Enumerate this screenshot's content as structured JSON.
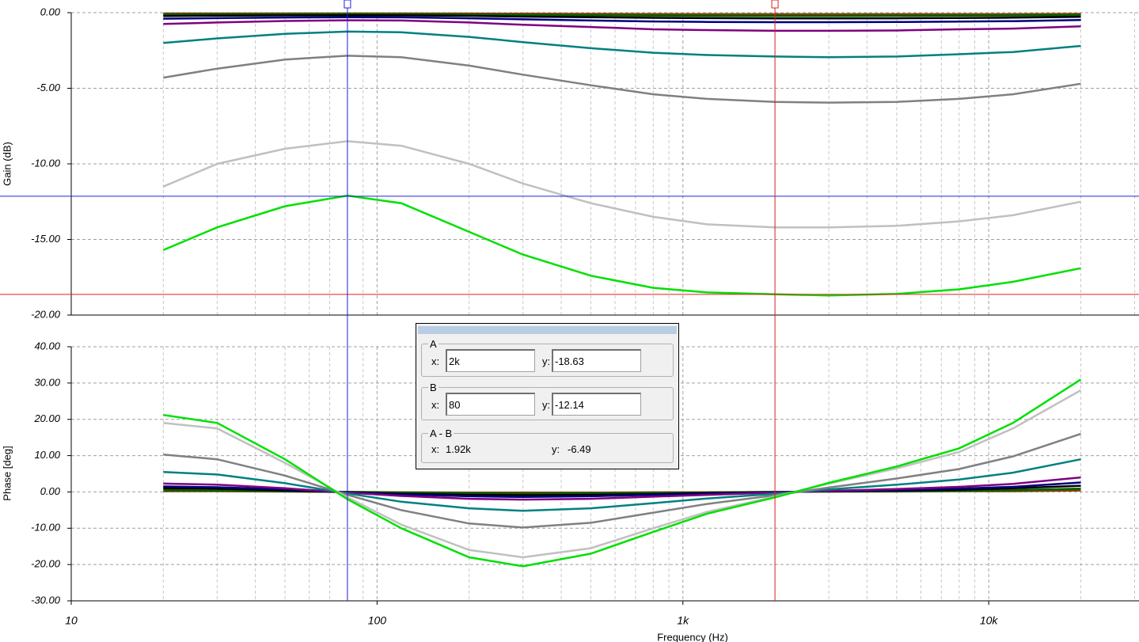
{
  "chart_data": {
    "type": "line",
    "xlabel": "Frequency (Hz)",
    "log_x": true,
    "grid": true,
    "x": [
      20,
      30,
      50,
      80,
      120,
      200,
      300,
      500,
      800,
      1200,
      2000,
      3000,
      5000,
      8000,
      12000,
      20000
    ],
    "xlim": [
      10,
      31000
    ],
    "xticks": [
      10,
      100,
      {
        "value": 1000,
        "label": "1k"
      },
      {
        "value": 10000,
        "label": "10k"
      }
    ],
    "xminor": [
      20,
      30,
      40,
      50,
      60,
      70,
      80,
      90,
      200,
      300,
      400,
      500,
      600,
      700,
      800,
      900,
      2000,
      3000,
      4000,
      5000,
      6000,
      7000,
      8000,
      9000,
      20000,
      30000
    ],
    "x_prefix": "x:",
    "y_prefix": "y:",
    "cursors": [
      {
        "name": "A",
        "x": 2000,
        "x_label": "2k",
        "y": -18.63,
        "color": "#e02020"
      },
      {
        "name": "B",
        "x": 80,
        "x_label": "80",
        "y": -12.14,
        "color": "#2020e0"
      },
      {
        "name": "A - B",
        "x": 1920,
        "x_label": "1.92k",
        "y": -6.49
      }
    ],
    "panels": [
      {
        "ylabel": "Gain (dB)",
        "ylim": [
          -20,
          0
        ],
        "yticks": [
          {
            "value": 0,
            "label": "0.00"
          },
          {
            "value": -5,
            "label": "-5.00"
          },
          {
            "value": -10,
            "label": "-10.00"
          },
          {
            "value": -15,
            "label": "-15.00"
          },
          {
            "value": -20,
            "label": "-20.00"
          }
        ],
        "series": [
          {
            "color": "#804000",
            "values": [
              -0.05,
              -0.05,
              -0.05,
              -0.05,
              -0.05,
              -0.06,
              -0.07,
              -0.08,
              -0.09,
              -0.1,
              -0.1,
              -0.1,
              -0.1,
              -0.1,
              -0.1,
              -0.08
            ]
          },
          {
            "color": "#006000",
            "values": [
              -0.12,
              -0.12,
              -0.11,
              -0.1,
              -0.11,
              -0.13,
              -0.16,
              -0.18,
              -0.2,
              -0.21,
              -0.22,
              -0.22,
              -0.21,
              -0.2,
              -0.19,
              -0.16
            ]
          },
          {
            "color": "#000000",
            "values": [
              -0.22,
              -0.2,
              -0.18,
              -0.17,
              -0.18,
              -0.21,
              -0.26,
              -0.3,
              -0.34,
              -0.36,
              -0.38,
              -0.38,
              -0.37,
              -0.35,
              -0.33,
              -0.28
            ]
          },
          {
            "color": "#000080",
            "values": [
              -0.4,
              -0.36,
              -0.32,
              -0.3,
              -0.31,
              -0.37,
              -0.44,
              -0.52,
              -0.58,
              -0.61,
              -0.63,
              -0.63,
              -0.62,
              -0.59,
              -0.56,
              -0.48
            ]
          },
          {
            "color": "#800080",
            "values": [
              -0.75,
              -0.65,
              -0.55,
              -0.5,
              -0.52,
              -0.65,
              -0.8,
              -0.95,
              -1.1,
              -1.15,
              -1.2,
              -1.2,
              -1.18,
              -1.1,
              -1.05,
              -0.9
            ]
          },
          {
            "color": "#008080",
            "values": [
              -2.0,
              -1.7,
              -1.4,
              -1.25,
              -1.3,
              -1.6,
              -1.95,
              -2.35,
              -2.65,
              -2.8,
              -2.9,
              -2.95,
              -2.9,
              -2.75,
              -2.6,
              -2.2
            ]
          },
          {
            "color": "#808080",
            "values": [
              -4.3,
              -3.7,
              -3.1,
              -2.85,
              -2.95,
              -3.5,
              -4.1,
              -4.8,
              -5.4,
              -5.7,
              -5.9,
              -5.95,
              -5.9,
              -5.7,
              -5.4,
              -4.7
            ]
          },
          {
            "color": "#c0c0c0",
            "values": [
              -11.5,
              -10.0,
              -9.0,
              -8.5,
              -8.8,
              -10.0,
              -11.3,
              -12.6,
              -13.5,
              -14.0,
              -14.2,
              -14.2,
              -14.1,
              -13.8,
              -13.4,
              -12.5
            ]
          },
          {
            "color": "#00e000",
            "values": [
              -15.7,
              -14.2,
              -12.8,
              -12.1,
              -12.6,
              -14.5,
              -16.0,
              -17.4,
              -18.2,
              -18.5,
              -18.63,
              -18.7,
              -18.6,
              -18.3,
              -17.8,
              -16.9
            ]
          }
        ]
      },
      {
        "ylabel": "Phase [deg]",
        "ylim": [
          -30,
          40
        ],
        "yticks": [
          {
            "value": 40,
            "label": "40.00"
          },
          {
            "value": 30,
            "label": "30.00"
          },
          {
            "value": 20,
            "label": "20.00"
          },
          {
            "value": 10,
            "label": "10.00"
          },
          {
            "value": 0,
            "label": "0.00"
          },
          {
            "value": -10,
            "label": "-10.00"
          },
          {
            "value": -20,
            "label": "-20.00"
          },
          {
            "value": -30,
            "label": "-30.00"
          }
        ],
        "series": [
          {
            "color": "#804000",
            "values": [
              0.2,
              0.2,
              0.1,
              0.0,
              -0.1,
              -0.2,
              -0.2,
              -0.2,
              -0.1,
              -0.1,
              0.0,
              0.1,
              0.1,
              0.2,
              0.2,
              0.4
            ]
          },
          {
            "color": "#006000",
            "values": [
              0.5,
              0.4,
              0.2,
              0.0,
              -0.2,
              -0.4,
              -0.5,
              -0.4,
              -0.3,
              -0.2,
              0.0,
              0.1,
              0.2,
              0.3,
              0.5,
              0.9
            ]
          },
          {
            "color": "#000000",
            "values": [
              1.0,
              0.9,
              0.4,
              -0.1,
              -0.5,
              -0.8,
              -0.9,
              -0.8,
              -0.6,
              -0.3,
              -0.1,
              0.2,
              0.4,
              0.6,
              1.0,
              1.7
            ]
          },
          {
            "color": "#000080",
            "values": [
              1.5,
              1.3,
              0.7,
              -0.1,
              -0.7,
              -1.2,
              -1.4,
              -1.2,
              -0.8,
              -0.5,
              -0.1,
              0.2,
              0.5,
              0.9,
              1.4,
              2.6
            ]
          },
          {
            "color": "#800080",
            "values": [
              2.3,
              2.0,
              1.0,
              -0.2,
              -1.1,
              -1.9,
              -2.1,
              -1.9,
              -1.3,
              -0.8,
              -0.2,
              0.3,
              0.8,
              1.4,
              2.2,
              4.0
            ]
          },
          {
            "color": "#008080",
            "values": [
              5.5,
              4.8,
              2.4,
              -0.4,
              -2.7,
              -4.5,
              -5.2,
              -4.5,
              -3.1,
              -1.8,
              -0.5,
              0.7,
              2.0,
              3.4,
              5.3,
              9.0
            ]
          },
          {
            "color": "#808080",
            "values": [
              10.3,
              9.0,
              4.5,
              -0.8,
              -5.0,
              -8.7,
              -9.8,
              -8.5,
              -5.7,
              -3.3,
              -0.9,
              1.2,
              3.7,
              6.3,
              9.8,
              16.0
            ]
          },
          {
            "color": "#c0c0c0",
            "values": [
              19.0,
              17.5,
              8.0,
              -1.5,
              -9.0,
              -16.0,
              -18.0,
              -15.5,
              -10.0,
              -5.5,
              -1.3,
              2.3,
              6.5,
              11.0,
              17.5,
              28.0
            ]
          },
          {
            "color": "#00e000",
            "values": [
              21.2,
              19.0,
              9.0,
              -2.0,
              -10.0,
              -18.0,
              -20.5,
              -17.0,
              -11.0,
              -6.0,
              -1.5,
              2.5,
              7.0,
              12.0,
              19.0,
              31.0
            ]
          }
        ]
      }
    ]
  }
}
